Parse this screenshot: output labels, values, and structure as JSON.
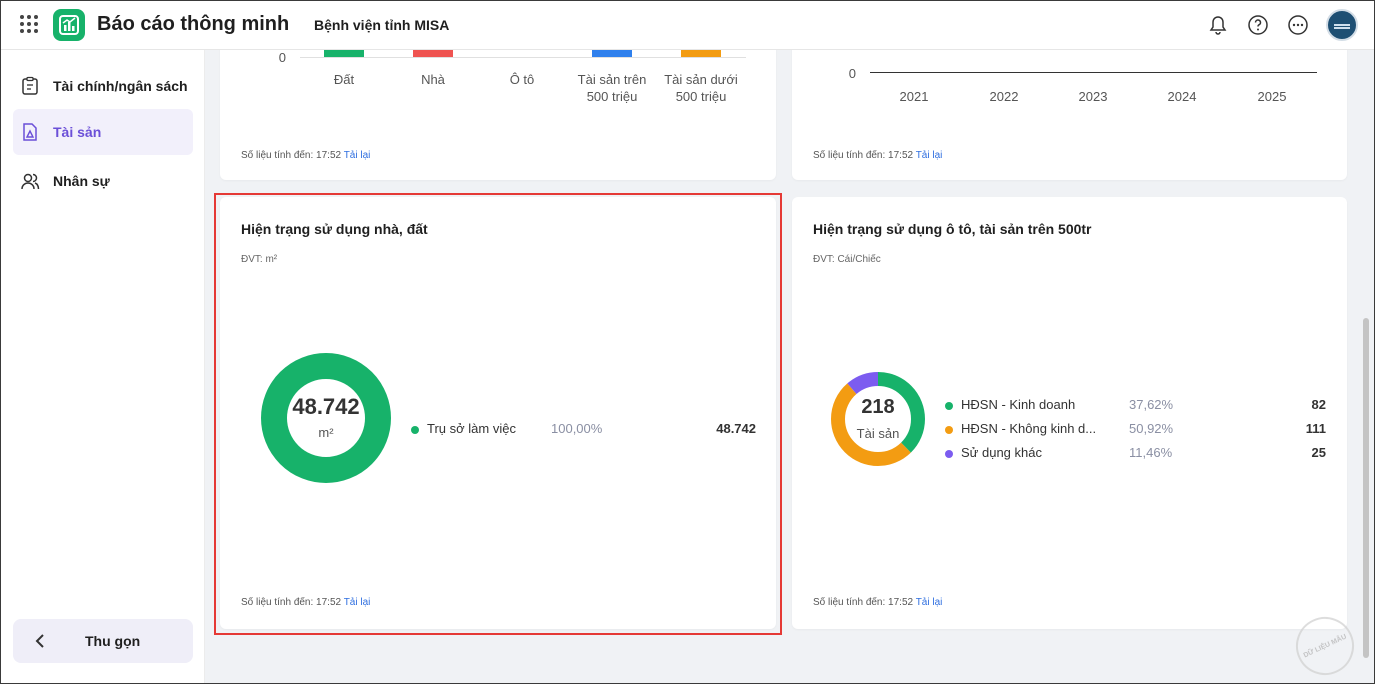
{
  "header": {
    "app_title": "Báo cáo thông minh",
    "org_name": "Bệnh viện tỉnh MISA"
  },
  "sidebar": {
    "items": [
      {
        "label": "Tài chính/ngân sách",
        "icon": "clipboard-icon"
      },
      {
        "label": "Tài sản",
        "icon": "asset-document-icon",
        "active": true
      },
      {
        "label": "Nhân sự",
        "icon": "users-icon"
      }
    ],
    "collapse_label": "Thu gọn"
  },
  "top_left_card": {
    "y_zero": "0",
    "categories": [
      "Đất",
      "Nhà",
      "Ô tô",
      "Tài sản trên",
      "500 triệu",
      "Tài sản dưới",
      "500 triệu"
    ],
    "bar_colors": [
      "#17b26a",
      "#ef5350",
      "#ffffff",
      "#2f80ed",
      "#f39c12"
    ],
    "footer_prefix": "Số liệu tính đến: 17:52",
    "reload": "Tải lại"
  },
  "top_right_card": {
    "y_zero": "0",
    "years": [
      "2021",
      "2022",
      "2023",
      "2024",
      "2025"
    ],
    "footer_prefix": "Số liệu tính đến: 17:52",
    "reload": "Tải lại"
  },
  "land_card": {
    "title": "Hiện trạng sử dụng nhà, đất",
    "unit": "ĐVT: m²",
    "total": "48.742",
    "total_unit": "m²",
    "legend": [
      {
        "name": "Trụ sở làm việc",
        "pct": "100,00%",
        "value": "48.742",
        "color": "#17b26a",
        "share": 100.0
      }
    ],
    "footer_prefix": "Số liệu tính đến: 17:52",
    "reload": "Tải lại"
  },
  "vehicle_card": {
    "title": "Hiện trạng sử dụng ô tô, tài sản trên 500tr",
    "unit": "ĐVT: Cái/Chiếc",
    "total": "218",
    "total_label": "Tài sản",
    "legend": [
      {
        "name": "HĐSN - Kinh doanh",
        "pct": "37,62%",
        "value": "82",
        "color": "#17b26a",
        "share": 37.62
      },
      {
        "name": "HĐSN - Không kinh d...",
        "pct": "50,92%",
        "value": "111",
        "color": "#f39c12",
        "share": 50.92
      },
      {
        "name": "Sử dụng khác",
        "pct": "11,46%",
        "value": "25",
        "color": "#7c5cf0",
        "share": 11.46
      }
    ],
    "footer_prefix": "Số liệu tính đến: 17:52",
    "reload": "Tải lại"
  },
  "watermark_text": "DỮ LIỆU MẪU"
}
